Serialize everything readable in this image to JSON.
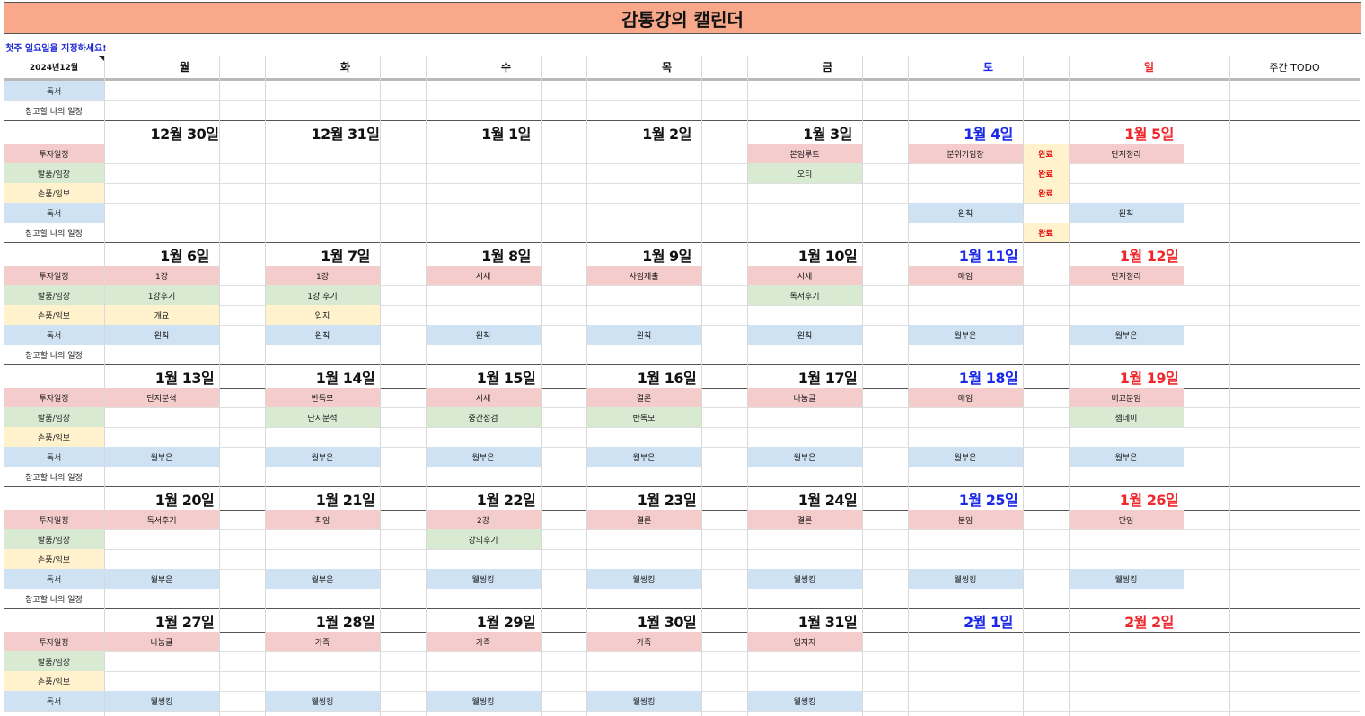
{
  "page": {
    "title": "감통강의 캘린더",
    "instruction": "첫주 일요일을 지정하세요!"
  },
  "header": {
    "month": "2024년12월",
    "days": [
      "월",
      "화",
      "수",
      "목",
      "금",
      "토",
      "일"
    ],
    "todo": "주간 TODO"
  },
  "categories": [
    "투자일정",
    "발품/임장",
    "손품/임보",
    "독서",
    "참고할 나의 일정"
  ],
  "colors": {
    "title_bg": "#f9a98a",
    "saturday": "#1a28e8",
    "sunday": "#f0262a",
    "invest": "#f4cccc",
    "field": "#d9ead3",
    "study": "#fff2cc",
    "reading": "#cfe2f3",
    "done_bg": "#fff2cc",
    "done_text": "#e00000"
  },
  "top_rows": [
    {
      "label": "독서",
      "cat": 3
    },
    {
      "label": "참고할 나의 일정",
      "cat": 4
    }
  ],
  "weeks": [
    {
      "dates": [
        "12월 30일",
        "12월 31일",
        "1월 1일",
        "1월 2일",
        "1월 3일",
        "1월 4일",
        "1월 5일"
      ],
      "cells": [
        [
          "",
          "",
          "",
          "",
          {
            "t": "본임루트",
            "bg": "invest"
          },
          {
            "t": "분위기임장",
            "bg": "invest",
            "done": "완료"
          },
          {
            "t": "단지정리",
            "bg": "invest"
          }
        ],
        [
          "",
          "",
          "",
          "",
          {
            "t": "오티",
            "bg": "field"
          },
          {
            "t": "",
            "done": "완료"
          },
          ""
        ],
        [
          "",
          "",
          "",
          "",
          "",
          {
            "t": "",
            "done": "완료"
          },
          ""
        ],
        [
          "",
          "",
          "",
          "",
          "",
          {
            "t": "원칙",
            "bg": "reading"
          },
          {
            "t": "원칙",
            "bg": "reading"
          }
        ],
        [
          "",
          "",
          "",
          "",
          "",
          {
            "t": "",
            "done": "완료"
          },
          ""
        ]
      ]
    },
    {
      "dates": [
        "1월 6일",
        "1월 7일",
        "1월 8일",
        "1월 9일",
        "1월 10일",
        "1월 11일",
        "1월 12일"
      ],
      "cells": [
        [
          {
            "t": "1강",
            "bg": "invest"
          },
          {
            "t": "1강",
            "bg": "invest"
          },
          {
            "t": "시세",
            "bg": "invest"
          },
          {
            "t": "사임제출",
            "bg": "invest"
          },
          {
            "t": "시세",
            "bg": "invest"
          },
          {
            "t": "매임",
            "bg": "invest"
          },
          {
            "t": "단지정리",
            "bg": "invest"
          }
        ],
        [
          {
            "t": "1강후기",
            "bg": "field"
          },
          {
            "t": "1강 후기",
            "bg": "field"
          },
          "",
          "",
          {
            "t": "독서후기",
            "bg": "field"
          },
          "",
          ""
        ],
        [
          {
            "t": "개요",
            "bg": "study"
          },
          {
            "t": "입지",
            "bg": "study"
          },
          "",
          "",
          "",
          "",
          ""
        ],
        [
          {
            "t": "원칙",
            "bg": "reading"
          },
          {
            "t": "원칙",
            "bg": "reading"
          },
          {
            "t": "원칙",
            "bg": "reading"
          },
          {
            "t": "원칙",
            "bg": "reading"
          },
          {
            "t": "원칙",
            "bg": "reading"
          },
          {
            "t": "월부은",
            "bg": "reading"
          },
          {
            "t": "월부은",
            "bg": "reading"
          }
        ],
        [
          "",
          "",
          "",
          "",
          "",
          "",
          ""
        ]
      ]
    },
    {
      "dates": [
        "1월 13일",
        "1월 14일",
        "1월 15일",
        "1월 16일",
        "1월 17일",
        "1월 18일",
        "1월 19일"
      ],
      "cells": [
        [
          {
            "t": "단지분석",
            "bg": "invest"
          },
          {
            "t": "반독모",
            "bg": "invest"
          },
          {
            "t": "시세",
            "bg": "invest"
          },
          {
            "t": "결론",
            "bg": "invest"
          },
          {
            "t": "나눔글",
            "bg": "invest"
          },
          {
            "t": "매임",
            "bg": "invest"
          },
          {
            "t": "비교분임",
            "bg": "invest"
          }
        ],
        [
          "",
          {
            "t": "단지분석",
            "bg": "field"
          },
          {
            "t": "중간점검",
            "bg": "field"
          },
          {
            "t": "반독모",
            "bg": "field"
          },
          "",
          "",
          {
            "t": "젬데이",
            "bg": "field"
          }
        ],
        [
          "",
          "",
          "",
          "",
          "",
          "",
          ""
        ],
        [
          {
            "t": "월부은",
            "bg": "reading"
          },
          {
            "t": "월부은",
            "bg": "reading"
          },
          {
            "t": "월부은",
            "bg": "reading"
          },
          {
            "t": "월부은",
            "bg": "reading"
          },
          {
            "t": "월부은",
            "bg": "reading"
          },
          {
            "t": "월부은",
            "bg": "reading"
          },
          {
            "t": "월부은",
            "bg": "reading"
          }
        ],
        [
          "",
          "",
          "",
          "",
          "",
          "",
          ""
        ]
      ]
    },
    {
      "dates": [
        "1월 20일",
        "1월 21일",
        "1월 22일",
        "1월 23일",
        "1월 24일",
        "1월 25일",
        "1월 26일"
      ],
      "cells": [
        [
          {
            "t": "독서후기",
            "bg": "invest"
          },
          {
            "t": "최임",
            "bg": "invest"
          },
          {
            "t": "2강",
            "bg": "invest"
          },
          {
            "t": "결론",
            "bg": "invest"
          },
          {
            "t": "결론",
            "bg": "invest"
          },
          {
            "t": "분임",
            "bg": "invest"
          },
          {
            "t": "단임",
            "bg": "invest"
          }
        ],
        [
          "",
          "",
          {
            "t": "강의후기",
            "bg": "field"
          },
          "",
          "",
          "",
          ""
        ],
        [
          "",
          "",
          "",
          "",
          "",
          "",
          ""
        ],
        [
          {
            "t": "월부은",
            "bg": "reading"
          },
          {
            "t": "월부은",
            "bg": "reading"
          },
          {
            "t": "웰씽킹",
            "bg": "reading"
          },
          {
            "t": "웰씽킹",
            "bg": "reading"
          },
          {
            "t": "웰씽킹",
            "bg": "reading"
          },
          {
            "t": "웰씽킹",
            "bg": "reading"
          },
          {
            "t": "웰씽킹",
            "bg": "reading"
          }
        ],
        [
          "",
          "",
          "",
          "",
          "",
          "",
          ""
        ]
      ]
    },
    {
      "dates": [
        "1월 27일",
        "1월 28일",
        "1월 29일",
        "1월 30일",
        "1월 31일",
        "2월 1일",
        "2월 2일"
      ],
      "cells": [
        [
          {
            "t": "나눔글",
            "bg": "invest"
          },
          {
            "t": "가족",
            "bg": "invest"
          },
          {
            "t": "가족",
            "bg": "invest"
          },
          {
            "t": "가족",
            "bg": "invest"
          },
          {
            "t": "입지지",
            "bg": "invest"
          },
          "",
          ""
        ],
        [
          "",
          "",
          "",
          "",
          "",
          "",
          ""
        ],
        [
          "",
          "",
          "",
          "",
          "",
          "",
          ""
        ],
        [
          {
            "t": "웰씽킹",
            "bg": "reading"
          },
          {
            "t": "웰씽킹",
            "bg": "reading"
          },
          {
            "t": "웰씽킹",
            "bg": "reading"
          },
          {
            "t": "웰씽킹",
            "bg": "reading"
          },
          {
            "t": "웰씽킹",
            "bg": "reading"
          },
          "",
          ""
        ],
        [
          "",
          "",
          "",
          "",
          "",
          "",
          ""
        ]
      ]
    }
  ]
}
